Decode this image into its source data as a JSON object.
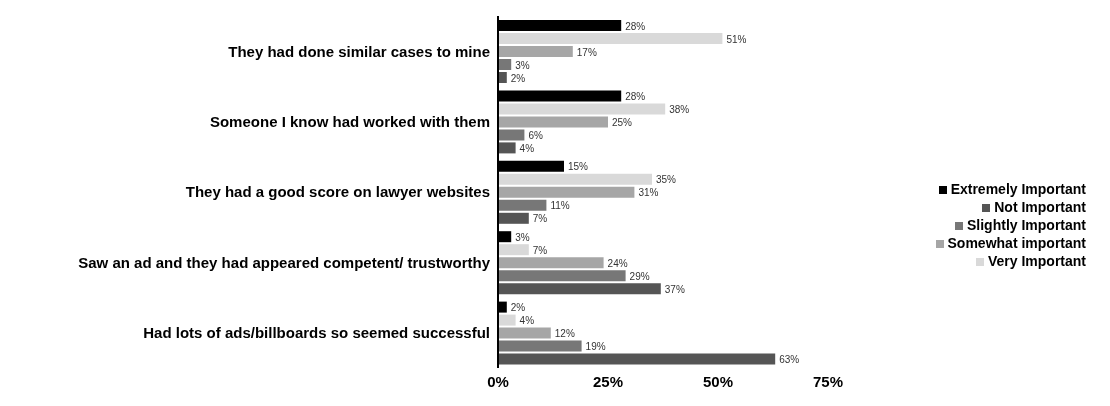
{
  "chart_data": {
    "type": "bar",
    "orientation": "horizontal",
    "categories": [
      "They had done similar cases to mine",
      "Someone I know had worked with them",
      "They had a good score on lawyer websites",
      "Saw an ad and they had appeared competent/ trustworthy",
      "Had lots of ads/billboards so seemed successful"
    ],
    "series": [
      {
        "name": "Extremely Important",
        "color": "#000000",
        "values": [
          28,
          28,
          15,
          3,
          2
        ],
        "value_labels": [
          "28%",
          "28%",
          "15%",
          "3%",
          "2%"
        ]
      },
      {
        "name": "Very Important",
        "color": "#d9d9d9",
        "values": [
          51,
          38,
          35,
          7,
          4
        ],
        "value_labels": [
          "51%",
          "38%",
          "35%",
          "7%",
          "4%"
        ]
      },
      {
        "name": "Somewhat important",
        "color": "#a6a6a6",
        "values": [
          17,
          25,
          31,
          24,
          12
        ],
        "value_labels": [
          "17%",
          "25%",
          "31%",
          "24%",
          "12%"
        ]
      },
      {
        "name": "Slightly Important",
        "color": "#777777",
        "values": [
          3,
          6,
          11,
          29,
          19
        ],
        "value_labels": [
          "3%",
          "6%",
          "11%",
          "29%",
          "19%"
        ]
      },
      {
        "name": "Not Important",
        "color": "#555555",
        "values": [
          2,
          4,
          7,
          37,
          63
        ],
        "value_labels": [
          "2%",
          "4%",
          "7%",
          "37%",
          "63%"
        ]
      }
    ],
    "xlim": [
      0,
      75
    ],
    "xticks": [
      {
        "value": 0,
        "label": "0%"
      },
      {
        "value": 25,
        "label": "25%"
      },
      {
        "value": 50,
        "label": "50%"
      },
      {
        "value": 75,
        "label": "75%"
      }
    ],
    "grid": false,
    "legend": "right"
  }
}
